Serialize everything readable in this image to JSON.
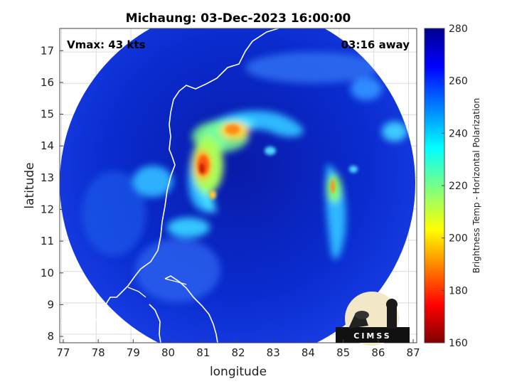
{
  "title": "Michaung: 03-Dec-2023 16:00:00",
  "annotations": {
    "vmax": "Vmax: 43 kts",
    "eta": "03:16 away"
  },
  "axes": {
    "xlabel": "longitude",
    "ylabel": "latitude",
    "xlim": [
      76.9,
      87.1
    ],
    "ylim": [
      7.8,
      17.7
    ],
    "xticks": [
      "77",
      "78",
      "79",
      "80",
      "81",
      "82",
      "83",
      "84",
      "85",
      "86",
      "87"
    ],
    "yticks": [
      "8",
      "9",
      "10",
      "11",
      "12",
      "13",
      "14",
      "15",
      "16",
      "17"
    ],
    "grid": true
  },
  "colorbar": {
    "label": "Brightness Temp - Horizontal Polarization",
    "range": [
      160,
      280
    ],
    "ticks": [
      "280",
      "260",
      "240",
      "220",
      "200",
      "180",
      "160"
    ],
    "colormap": "jet"
  },
  "logo": {
    "text": "CIMSS"
  },
  "colors": {
    "background": "#00008f",
    "coast": "#ffffff",
    "cold_core": "#b30000"
  }
}
